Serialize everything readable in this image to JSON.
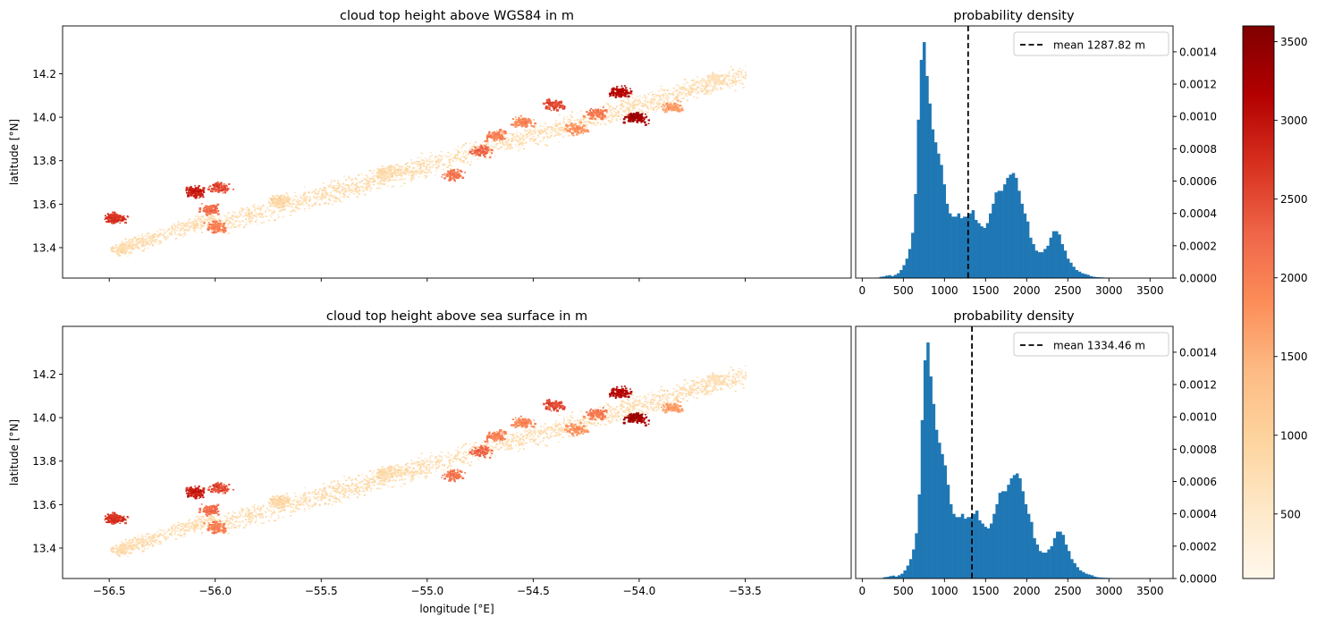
{
  "chart_data": [
    {
      "id": "map_wgs84",
      "type": "scatter",
      "title": "cloud top height above WGS84 in m",
      "xlabel": "",
      "ylabel": "latitude [°N]",
      "xlim": [
        -56.72,
        -53.0
      ],
      "ylim": [
        13.26,
        14.42
      ],
      "xticks": [
        -56.5,
        -56.0,
        -55.5,
        -55.0,
        -54.5,
        -54.0,
        -53.5
      ],
      "xtick_labels_visible": false,
      "yticks": [
        13.4,
        13.6,
        13.8,
        14.0,
        14.2
      ],
      "ytick_labels": [
        "13.4",
        "13.6",
        "13.8",
        "14.0",
        "14.2"
      ],
      "color_field": "cloud top height [m]",
      "clusters": [
        {
          "lon": -56.48,
          "lat": 13.54,
          "height": 2700
        },
        {
          "lon": -56.45,
          "lat": 13.4,
          "height": 800
        },
        {
          "lon": -56.1,
          "lat": 13.66,
          "height": 2900
        },
        {
          "lon": -55.98,
          "lat": 13.68,
          "height": 2500
        },
        {
          "lon": -56.03,
          "lat": 13.58,
          "height": 2200
        },
        {
          "lon": -56.0,
          "lat": 13.5,
          "height": 2000
        },
        {
          "lon": -55.7,
          "lat": 13.62,
          "height": 900
        },
        {
          "lon": -55.2,
          "lat": 13.75,
          "height": 800
        },
        {
          "lon": -54.88,
          "lat": 13.74,
          "height": 2100
        },
        {
          "lon": -54.75,
          "lat": 13.85,
          "height": 2300
        },
        {
          "lon": -54.68,
          "lat": 13.92,
          "height": 2000
        },
        {
          "lon": -54.55,
          "lat": 13.98,
          "height": 1900
        },
        {
          "lon": -54.4,
          "lat": 14.06,
          "height": 2500
        },
        {
          "lon": -54.3,
          "lat": 13.95,
          "height": 1800
        },
        {
          "lon": -54.2,
          "lat": 14.02,
          "height": 2100
        },
        {
          "lon": -54.1,
          "lat": 14.12,
          "height": 3100
        },
        {
          "lon": -54.02,
          "lat": 14.0,
          "height": 3300
        },
        {
          "lon": -53.85,
          "lat": 14.05,
          "height": 1700
        },
        {
          "lon": -53.65,
          "lat": 14.18,
          "height": 700
        }
      ]
    },
    {
      "id": "hist_wgs84",
      "type": "bar",
      "title": "probability density",
      "xlim": [
        -80,
        3780
      ],
      "ylim": [
        0,
        0.00156
      ],
      "xticks": [
        0,
        500,
        1000,
        1500,
        2000,
        2500,
        3000,
        3500
      ],
      "xtick_labels": [
        "0",
        "500",
        "1000",
        "1500",
        "2000",
        "2500",
        "3000",
        "3500"
      ],
      "yticks": [
        0,
        0.0002,
        0.0004,
        0.0006,
        0.0008,
        0.001,
        0.0012,
        0.0014
      ],
      "ytick_labels": [
        "0.0000",
        "0.0002",
        "0.0004",
        "0.0006",
        "0.0008",
        "0.0010",
        "0.0012",
        "0.0014"
      ],
      "bin_start": 0,
      "bin_width": 35,
      "values": [
        0,
        0,
        0,
        0,
        0,
        3e-06,
        8e-06,
        1e-05,
        1.5e-05,
        1.8e-05,
        1.2e-05,
        2e-05,
        3e-05,
        5e-05,
        8e-05,
        0.00012,
        0.00018,
        0.00028,
        0.00052,
        0.00098,
        0.00135,
        0.00146,
        0.00125,
        0.00108,
        0.00092,
        0.00084,
        0.00077,
        0.0007,
        0.00058,
        0.00046,
        0.0004,
        0.00038,
        0.00038,
        0.0004,
        0.00037,
        0.00038,
        0.00038,
        0.0004,
        0.00042,
        0.00036,
        0.00034,
        0.00032,
        0.00031,
        0.00034,
        0.0004,
        0.00046,
        0.00053,
        0.00054,
        0.00054,
        0.00058,
        0.00062,
        0.00064,
        0.00065,
        0.00062,
        0.00054,
        0.00046,
        0.0004,
        0.00035,
        0.00025,
        0.00021,
        0.00017,
        0.00016,
        0.00016,
        0.00018,
        0.0002,
        0.00025,
        0.00029,
        0.00029,
        0.00027,
        0.00021,
        0.00017,
        0.00012,
        9.5e-05,
        7e-05,
        5e-05,
        4e-05,
        3e-05,
        2.5e-05,
        2e-05,
        1.2e-05,
        8e-06,
        6e-06,
        5e-06,
        4e-06,
        3e-06,
        2e-06,
        1e-06,
        1e-06,
        1e-06,
        0,
        0,
        0,
        0,
        0,
        0,
        0,
        0,
        0,
        0,
        0
      ],
      "mean": 1287.82,
      "legend_label": "mean 1287.82 m",
      "legend_loc": "upper right"
    },
    {
      "id": "map_sea",
      "type": "scatter",
      "title": "cloud top height above sea surface in m",
      "xlabel": "longitude [°E]",
      "ylabel": "latitude [°N]",
      "xlim": [
        -56.72,
        -53.0
      ],
      "ylim": [
        13.26,
        14.42
      ],
      "xticks": [
        -56.5,
        -56.0,
        -55.5,
        -55.0,
        -54.5,
        -54.0,
        -53.5
      ],
      "xtick_labels": [
        "−56.5",
        "−56.0",
        "−55.5",
        "−55.0",
        "−54.5",
        "−54.0",
        "−53.5"
      ],
      "yticks": [
        13.4,
        13.6,
        13.8,
        14.0,
        14.2
      ],
      "ytick_labels": [
        "13.4",
        "13.6",
        "13.8",
        "14.0",
        "14.2"
      ],
      "color_field": "cloud top height [m]"
    },
    {
      "id": "hist_sea",
      "type": "bar",
      "title": "probability density",
      "xlim": [
        -80,
        3780
      ],
      "ylim": [
        0,
        0.00156
      ],
      "xticks": [
        0,
        500,
        1000,
        1500,
        2000,
        2500,
        3000,
        3500
      ],
      "xtick_labels": [
        "0",
        "500",
        "1000",
        "1500",
        "2000",
        "2500",
        "3000",
        "3500"
      ],
      "yticks": [
        0,
        0.0002,
        0.0004,
        0.0006,
        0.0008,
        0.001,
        0.0012,
        0.0014
      ],
      "ytick_labels": [
        "0.0000",
        "0.0002",
        "0.0004",
        "0.0006",
        "0.0008",
        "0.0010",
        "0.0012",
        "0.0014"
      ],
      "bin_start": 46,
      "bin_width": 35,
      "values": [
        0,
        0,
        0,
        0,
        0,
        3e-06,
        8e-06,
        1e-05,
        1.5e-05,
        1.8e-05,
        1.2e-05,
        2e-05,
        3e-05,
        5e-05,
        8e-05,
        0.00012,
        0.00018,
        0.00028,
        0.00052,
        0.00098,
        0.00135,
        0.00146,
        0.00125,
        0.00108,
        0.00092,
        0.00084,
        0.00077,
        0.0007,
        0.00058,
        0.00046,
        0.0004,
        0.00038,
        0.00038,
        0.0004,
        0.00037,
        0.00038,
        0.00038,
        0.0004,
        0.00042,
        0.00036,
        0.00034,
        0.00032,
        0.00031,
        0.00034,
        0.0004,
        0.00046,
        0.00053,
        0.00054,
        0.00054,
        0.00058,
        0.00062,
        0.00064,
        0.00065,
        0.00062,
        0.00054,
        0.00046,
        0.0004,
        0.00035,
        0.00025,
        0.00021,
        0.00017,
        0.00016,
        0.00016,
        0.00018,
        0.0002,
        0.00025,
        0.00029,
        0.00029,
        0.00027,
        0.00021,
        0.00017,
        0.00012,
        9.5e-05,
        7e-05,
        5e-05,
        4e-05,
        3e-05,
        2.5e-05,
        2e-05,
        1.2e-05,
        8e-06,
        6e-06,
        5e-06,
        4e-06,
        3e-06,
        2e-06,
        1e-06,
        1e-06,
        1e-06,
        0,
        0,
        0,
        0,
        0,
        0,
        0,
        0,
        0,
        0,
        0
      ],
      "mean": 1334.46,
      "legend_label": "mean 1334.46 m",
      "legend_loc": "upper right"
    },
    {
      "id": "colorbar",
      "type": "heatmap",
      "colormap": "OrRd",
      "range": [
        90,
        3600
      ],
      "ticks": [
        500,
        1000,
        1500,
        2000,
        2500,
        3000,
        3500
      ],
      "tick_labels": [
        "500",
        "1000",
        "1500",
        "2000",
        "2500",
        "3000",
        "3500"
      ],
      "colormap_stops": [
        "#fff7ec",
        "#fee8c8",
        "#fdd49e",
        "#fdbb84",
        "#fc8d59",
        "#ef6548",
        "#d7301f",
        "#b30000",
        "#7f0000"
      ]
    }
  ],
  "colors": {
    "bar": "#1f77b4",
    "mean_line": "#000000",
    "axis": "#000000"
  }
}
